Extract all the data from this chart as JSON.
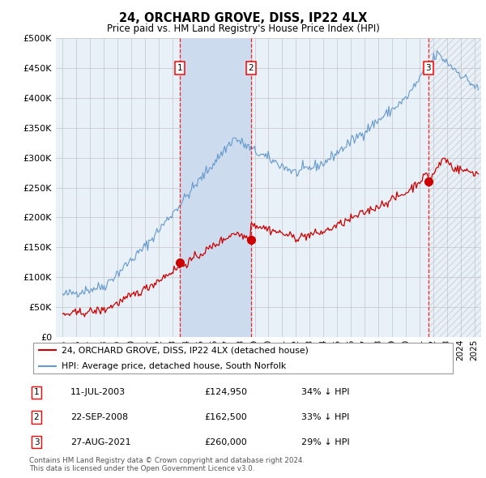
{
  "title": "24, ORCHARD GROVE, DISS, IP22 4LX",
  "subtitle": "Price paid vs. HM Land Registry's House Price Index (HPI)",
  "legend_line1": "24, ORCHARD GROVE, DISS, IP22 4LX (detached house)",
  "legend_line2": "HPI: Average price, detached house, South Norfolk",
  "footer": "Contains HM Land Registry data © Crown copyright and database right 2024.\nThis data is licensed under the Open Government Licence v3.0.",
  "sale_color": "#cc0000",
  "hpi_color": "#6699cc",
  "background_color": "#e8f0f8",
  "shade_color": "#ccdcee",
  "purchases": [
    {
      "label": "1",
      "date": "11-JUL-2003",
      "price": 124950,
      "note": "34% ↓ HPI",
      "x": 2003.53
    },
    {
      "label": "2",
      "date": "22-SEP-2008",
      "price": 162500,
      "note": "33% ↓ HPI",
      "x": 2008.72
    },
    {
      "label": "3",
      "date": "27-AUG-2021",
      "price": 260000,
      "note": "29% ↓ HPI",
      "x": 2021.65
    }
  ],
  "ylim": [
    0,
    500000
  ],
  "yticks": [
    0,
    50000,
    100000,
    150000,
    200000,
    250000,
    300000,
    350000,
    400000,
    450000,
    500000
  ],
  "xlim_start": 1994.5,
  "xlim_end": 2025.5
}
